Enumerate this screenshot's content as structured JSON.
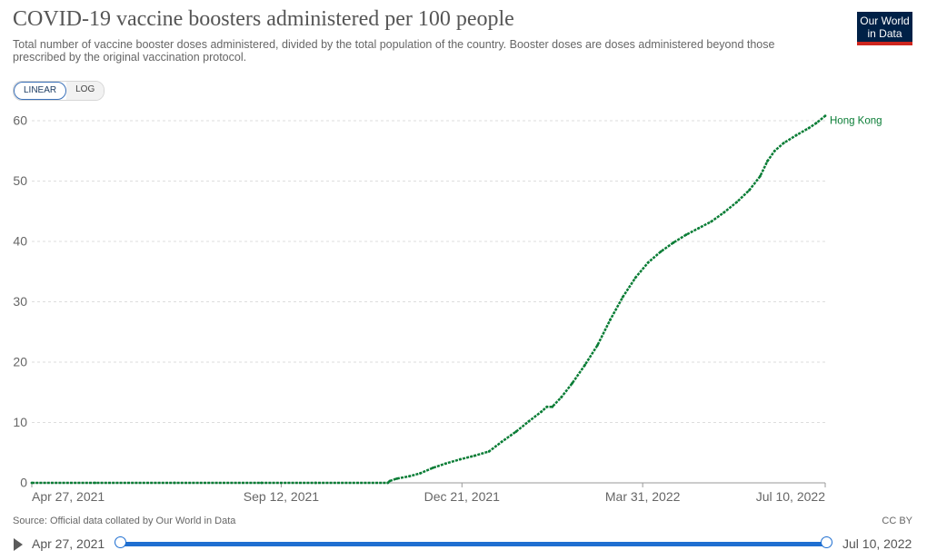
{
  "header": {
    "title": "COVID-19 vaccine boosters administered per 100 people",
    "subtitle": "Total number of vaccine booster doses administered, divided by the total population of the country. Booster doses are doses administered beyond those prescribed by the original vaccination protocol.",
    "logo_line1": "Our World",
    "logo_line2": "in Data"
  },
  "scale_toggle": {
    "linear_label": "LINEAR",
    "log_label": "LOG",
    "selected": "LINEAR"
  },
  "footer": {
    "source": "Source: Official data collated by Our World in Data",
    "license": "CC BY"
  },
  "timeline": {
    "start_label": "Apr 27, 2021",
    "end_label": "Jul 10, 2022"
  },
  "colors": {
    "series": "#0a7d36",
    "accent": "#1f6fd1",
    "logo_bg": "#002147",
    "logo_bar": "#ce261e"
  },
  "chart_data": {
    "type": "line",
    "title": "COVID-19 vaccine boosters administered per 100 people",
    "xlabel": "",
    "ylabel": "",
    "ylim": [
      0,
      60
    ],
    "y_ticks": [
      0,
      10,
      20,
      30,
      40,
      50,
      60
    ],
    "x_tick_labels": [
      "Apr 27, 2021",
      "Sep 12, 2021",
      "Dec 21, 2021",
      "Mar 31, 2022",
      "Jul 10, 2022"
    ],
    "x_tick_dates": [
      "2021-04-27",
      "2021-09-12",
      "2021-12-21",
      "2022-03-31",
      "2022-07-10"
    ],
    "xlim": [
      "2021-04-27",
      "2022-07-10"
    ],
    "grid": "horizontal dashed",
    "legend_position": "line end label",
    "series": [
      {
        "name": "Hong Kong",
        "points": [
          [
            "2021-04-27",
            0
          ],
          [
            "2021-06-01",
            0
          ],
          [
            "2021-07-15",
            0
          ],
          [
            "2021-09-01",
            0
          ],
          [
            "2021-10-01",
            0
          ],
          [
            "2021-11-10",
            0
          ],
          [
            "2021-11-11",
            0.3
          ],
          [
            "2021-11-15",
            0.7
          ],
          [
            "2021-11-22",
            1.1
          ],
          [
            "2021-11-28",
            1.6
          ],
          [
            "2021-12-05",
            2.5
          ],
          [
            "2021-12-12",
            3.2
          ],
          [
            "2021-12-20",
            3.9
          ],
          [
            "2021-12-28",
            4.5
          ],
          [
            "2022-01-05",
            5.2
          ],
          [
            "2022-01-12",
            6.8
          ],
          [
            "2022-01-20",
            8.5
          ],
          [
            "2022-01-27",
            10.2
          ],
          [
            "2022-02-03",
            11.8
          ],
          [
            "2022-02-06",
            12.6
          ],
          [
            "2022-02-09",
            12.6
          ],
          [
            "2022-02-14",
            14.2
          ],
          [
            "2022-02-20",
            16.5
          ],
          [
            "2022-02-27",
            19.5
          ],
          [
            "2022-03-06",
            22.8
          ],
          [
            "2022-03-13",
            27.0
          ],
          [
            "2022-03-20",
            30.8
          ],
          [
            "2022-03-27",
            34.0
          ],
          [
            "2022-04-03",
            36.5
          ],
          [
            "2022-04-10",
            38.3
          ],
          [
            "2022-04-17",
            39.8
          ],
          [
            "2022-04-24",
            41.1
          ],
          [
            "2022-05-01",
            42.2
          ],
          [
            "2022-05-08",
            43.3
          ],
          [
            "2022-05-15",
            44.8
          ],
          [
            "2022-05-22",
            46.5
          ],
          [
            "2022-05-29",
            48.5
          ],
          [
            "2022-06-04",
            50.8
          ],
          [
            "2022-06-08",
            53.3
          ],
          [
            "2022-06-12",
            55.0
          ],
          [
            "2022-06-17",
            56.3
          ],
          [
            "2022-06-24",
            57.6
          ],
          [
            "2022-07-01",
            58.8
          ],
          [
            "2022-07-05",
            59.6
          ],
          [
            "2022-07-10",
            60.8
          ]
        ]
      }
    ]
  }
}
